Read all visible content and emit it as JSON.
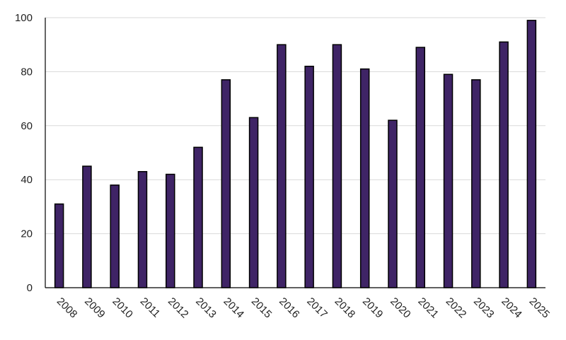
{
  "chart_data": {
    "type": "bar",
    "title": "",
    "xlabel": "",
    "ylabel": "",
    "categories": [
      "2008",
      "2009",
      "2010",
      "2011",
      "2012",
      "2013",
      "2014",
      "2015",
      "2016",
      "2017",
      "2018",
      "2019",
      "2020",
      "2021",
      "2022",
      "2023",
      "2024",
      "2025"
    ],
    "values": [
      31,
      45,
      38,
      43,
      42,
      52,
      77,
      63,
      90,
      82,
      90,
      81,
      62,
      89,
      79,
      77,
      91,
      99
    ],
    "ylim": [
      0,
      100
    ],
    "yticks": [
      "0",
      "20",
      "40",
      "60",
      "80",
      "100"
    ],
    "grid": true,
    "colors": {
      "bar": "#3f2466",
      "bar_border": "#000000",
      "grid": "#d9d9d9"
    }
  }
}
